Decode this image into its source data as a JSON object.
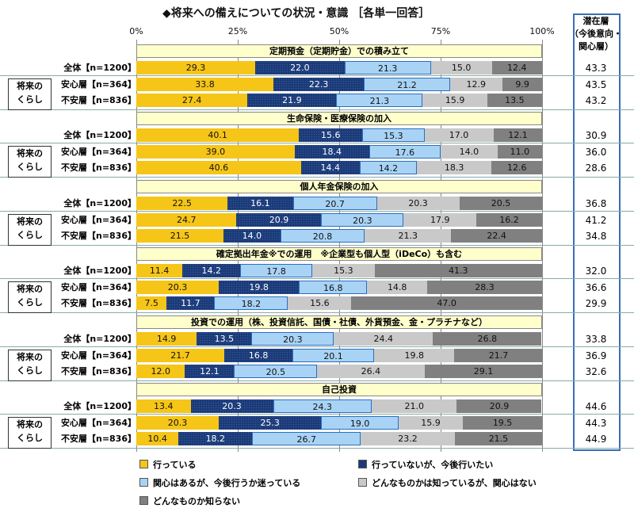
{
  "chart_data": {
    "type": "stacked-bar-horizontal",
    "title": "◆将来への備えについての状況・意識 ［各単一回答］",
    "xlim": [
      0,
      100
    ],
    "x_ticks": [
      "0%",
      "25%",
      "50%",
      "75%",
      "100%"
    ],
    "right_column_header": "潜在層（今後意向・関心層）",
    "right_column_header_lines": [
      "潜在層",
      "（今後意向・",
      "関心層）"
    ],
    "group_label": [
      "将来の",
      "くらし"
    ],
    "series": [
      {
        "name": "行っている",
        "color": "#f5c518"
      },
      {
        "name": "行っていないが、今後行いたい",
        "color": "#1b3a78"
      },
      {
        "name": "関心はあるが、今後行うか迷っている",
        "color": "#a9d3f5"
      },
      {
        "name": "どんなものかは知っているが、関心はない",
        "color": "#c9c9c9"
      },
      {
        "name": "どんなものか知らない",
        "color": "#808080"
      }
    ],
    "groups": [
      {
        "title": "定期預金（定期貯金）での積み立て",
        "rows": [
          {
            "label": "全体【n=1200】",
            "values": [
              29.3,
              22.0,
              21.3,
              15.0,
              12.4
            ],
            "potential": "43.3"
          },
          {
            "label": "安心層【n=364】",
            "values": [
              33.8,
              22.3,
              21.2,
              12.9,
              9.9
            ],
            "potential": "43.5"
          },
          {
            "label": "不安層【n=836】",
            "values": [
              27.4,
              21.9,
              21.3,
              15.9,
              13.5
            ],
            "potential": "43.2"
          }
        ]
      },
      {
        "title": "生命保険・医療保険の加入",
        "rows": [
          {
            "label": "全体【n=1200】",
            "values": [
              40.1,
              15.6,
              15.3,
              17.0,
              12.1
            ],
            "potential": "30.9"
          },
          {
            "label": "安心層【n=364】",
            "values": [
              39.0,
              18.4,
              17.6,
              14.0,
              11.0
            ],
            "potential": "36.0"
          },
          {
            "label": "不安層【n=836】",
            "values": [
              40.6,
              14.4,
              14.2,
              18.3,
              12.6
            ],
            "potential": "28.6"
          }
        ]
      },
      {
        "title": "個人年金保険の加入",
        "rows": [
          {
            "label": "全体【n=1200】",
            "values": [
              22.5,
              16.1,
              20.7,
              20.3,
              20.5
            ],
            "potential": "36.8"
          },
          {
            "label": "安心層【n=364】",
            "values": [
              24.7,
              20.9,
              20.3,
              17.9,
              16.2
            ],
            "potential": "41.2"
          },
          {
            "label": "不安層【n=836】",
            "values": [
              21.5,
              14.0,
              20.8,
              21.3,
              22.4
            ],
            "potential": "34.8"
          }
        ]
      },
      {
        "title": "確定拠出年金※での運用　※企業型も個人型（iDeCo）も含む",
        "rows": [
          {
            "label": "全体【n=1200】",
            "values": [
              11.4,
              14.2,
              17.8,
              15.3,
              41.3
            ],
            "potential": "32.0"
          },
          {
            "label": "安心層【n=364】",
            "values": [
              20.3,
              19.8,
              16.8,
              14.8,
              28.3
            ],
            "potential": "36.6"
          },
          {
            "label": "不安層【n=836】",
            "values": [
              7.5,
              11.7,
              18.2,
              15.6,
              47.0
            ],
            "potential": "29.9"
          }
        ]
      },
      {
        "title": "投資での運用（株、投資信託、国債・社債、外貨預金、金・プラチナなど）",
        "rows": [
          {
            "label": "全体【n=1200】",
            "values": [
              14.9,
              13.5,
              20.3,
              24.4,
              26.8
            ],
            "potential": "33.8"
          },
          {
            "label": "安心層【n=364】",
            "values": [
              21.7,
              16.8,
              20.1,
              19.8,
              21.7
            ],
            "potential": "36.9"
          },
          {
            "label": "不安層【n=836】",
            "values": [
              12.0,
              12.1,
              20.5,
              26.4,
              29.1
            ],
            "potential": "32.6"
          }
        ]
      },
      {
        "title": "自己投資",
        "rows": [
          {
            "label": "全体【n=1200】",
            "values": [
              13.4,
              20.3,
              24.3,
              21.0,
              20.9
            ],
            "potential": "44.6"
          },
          {
            "label": "安心層【n=364】",
            "values": [
              20.3,
              25.3,
              19.0,
              15.9,
              19.5
            ],
            "potential": "44.3"
          },
          {
            "label": "不安層【n=836】",
            "values": [
              10.4,
              18.2,
              26.7,
              23.2,
              21.5
            ],
            "potential": "44.9"
          }
        ]
      }
    ],
    "legend_placement": "bottom"
  }
}
